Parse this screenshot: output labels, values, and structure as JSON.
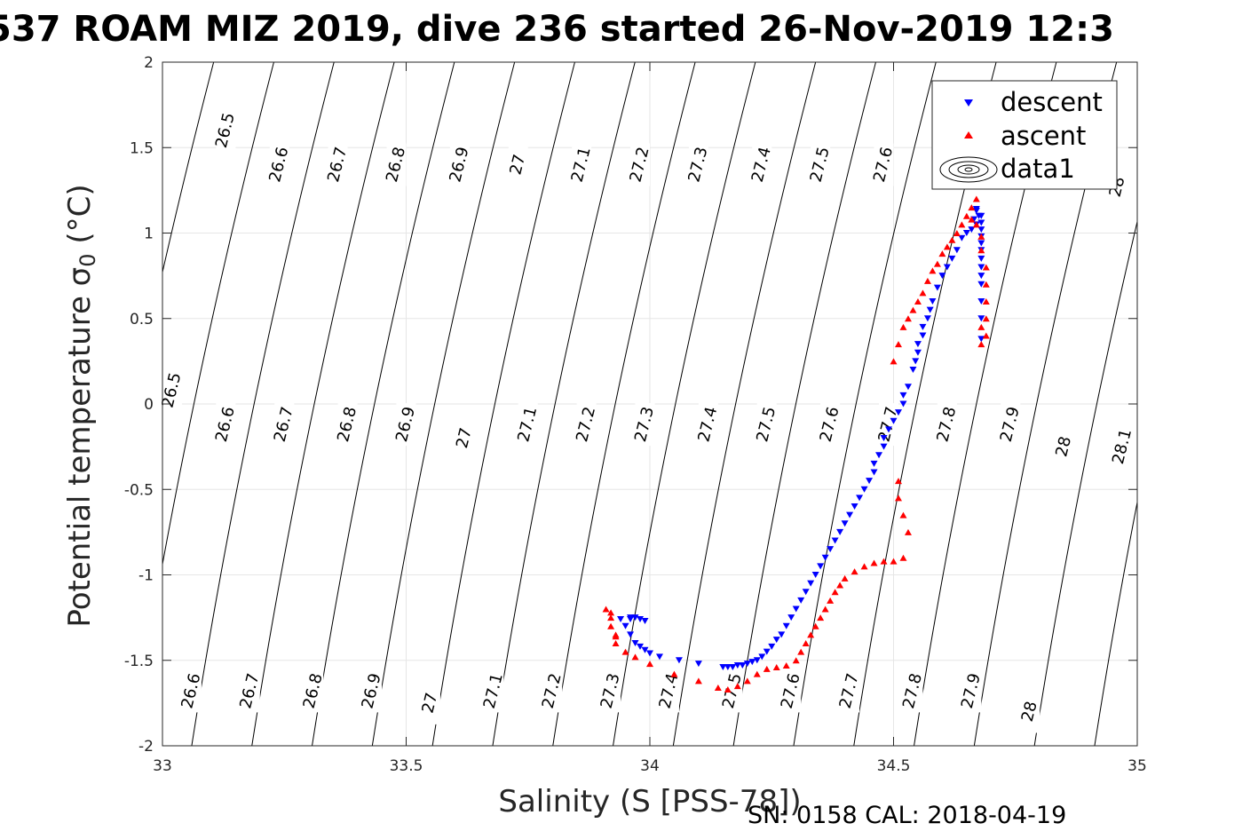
{
  "chart_data": {
    "type": "scatter",
    "title": "537 ROAM MIZ 2019, dive 236 started 26-Nov-2019 12:3",
    "xlabel": "Salinity (S [PSS-78])",
    "ylabel_main": "Potential temperature σ",
    "ylabel_sub": "0",
    "ylabel_unit": " (°C)",
    "footer": "SN: 0158  CAL: 2018-04-19",
    "xlim": [
      33,
      35
    ],
    "ylim": [
      -2,
      2
    ],
    "grid": true,
    "legend_position": "top-right",
    "x_ticks": [
      "33",
      "33.5",
      "34",
      "34.5",
      "35"
    ],
    "y_ticks": [
      "-2",
      "-1.5",
      "-1",
      "-0.5",
      "0",
      "0.5",
      "1",
      "1.5",
      "2"
    ],
    "legend": [
      "descent",
      "ascent",
      "data1"
    ],
    "colors": {
      "descent": "#0000ff",
      "ascent": "#ff0000",
      "contour": "#000000"
    },
    "contour_labels": [
      {
        "text": "26.5",
        "x": 33.13,
        "y": 1.6
      },
      {
        "text": "26.6",
        "x": 33.24,
        "y": 1.4
      },
      {
        "text": "26.7",
        "x": 33.36,
        "y": 1.4
      },
      {
        "text": "26.8",
        "x": 33.48,
        "y": 1.4
      },
      {
        "text": "26.9",
        "x": 33.61,
        "y": 1.4
      },
      {
        "text": "27",
        "x": 33.73,
        "y": 1.4
      },
      {
        "text": "27.1",
        "x": 33.86,
        "y": 1.4
      },
      {
        "text": "27.2",
        "x": 33.98,
        "y": 1.4
      },
      {
        "text": "27.3",
        "x": 34.1,
        "y": 1.4
      },
      {
        "text": "27.4",
        "x": 34.23,
        "y": 1.4
      },
      {
        "text": "27.5",
        "x": 34.35,
        "y": 1.4
      },
      {
        "text": "27.6",
        "x": 34.48,
        "y": 1.4
      },
      {
        "text": "28",
        "x": 34.96,
        "y": 1.27
      },
      {
        "text": "26.5",
        "x": 33.02,
        "y": 0.08
      },
      {
        "text": "26.6",
        "x": 33.13,
        "y": -0.12
      },
      {
        "text": "26.7",
        "x": 33.25,
        "y": -0.12
      },
      {
        "text": "26.8",
        "x": 33.38,
        "y": -0.12
      },
      {
        "text": "26.9",
        "x": 33.5,
        "y": -0.12
      },
      {
        "text": "27",
        "x": 33.62,
        "y": -0.2
      },
      {
        "text": "27.1",
        "x": 33.75,
        "y": -0.12
      },
      {
        "text": "27.2",
        "x": 33.87,
        "y": -0.12
      },
      {
        "text": "27.3",
        "x": 33.99,
        "y": -0.12
      },
      {
        "text": "27.4",
        "x": 34.12,
        "y": -0.12
      },
      {
        "text": "27.5",
        "x": 34.24,
        "y": -0.12
      },
      {
        "text": "27.6",
        "x": 34.37,
        "y": -0.12
      },
      {
        "text": "27.7",
        "x": 34.49,
        "y": -0.12
      },
      {
        "text": "27.8",
        "x": 34.61,
        "y": -0.12
      },
      {
        "text": "27.9",
        "x": 34.74,
        "y": -0.12
      },
      {
        "text": "28",
        "x": 34.85,
        "y": -0.25
      },
      {
        "text": "28.1",
        "x": 34.97,
        "y": -0.25
      },
      {
        "text": "26.6",
        "x": 33.06,
        "y": -1.68
      },
      {
        "text": "26.7",
        "x": 33.18,
        "y": -1.68
      },
      {
        "text": "26.8",
        "x": 33.31,
        "y": -1.68
      },
      {
        "text": "26.9",
        "x": 33.43,
        "y": -1.68
      },
      {
        "text": "27",
        "x": 33.55,
        "y": -1.75
      },
      {
        "text": "27.1",
        "x": 33.68,
        "y": -1.68
      },
      {
        "text": "27.2",
        "x": 33.8,
        "y": -1.68
      },
      {
        "text": "27.3",
        "x": 33.92,
        "y": -1.68
      },
      {
        "text": "27.4",
        "x": 34.04,
        "y": -1.68
      },
      {
        "text": "27.5",
        "x": 34.17,
        "y": -1.68
      },
      {
        "text": "27.6",
        "x": 34.29,
        "y": -1.68
      },
      {
        "text": "27.7",
        "x": 34.41,
        "y": -1.68
      },
      {
        "text": "27.8",
        "x": 34.54,
        "y": -1.68
      },
      {
        "text": "27.9",
        "x": 34.66,
        "y": -1.68
      },
      {
        "text": "28",
        "x": 34.78,
        "y": -1.8
      }
    ],
    "series": [
      {
        "name": "descent",
        "marker": "triangle-down",
        "x": [
          34.67,
          34.67,
          34.68,
          34.68,
          34.68,
          34.68,
          34.68,
          34.68,
          34.68,
          34.68,
          34.68,
          34.68,
          34.68,
          34.68,
          34.68,
          34.675,
          34.67,
          34.665,
          34.66,
          34.65,
          34.64,
          34.63,
          34.62,
          34.61,
          34.6,
          34.59,
          34.58,
          34.575,
          34.57,
          34.56,
          34.56,
          34.55,
          34.55,
          34.545,
          34.54,
          34.53,
          34.52,
          34.52,
          34.51,
          34.5,
          34.49,
          34.48,
          34.48,
          34.47,
          34.46,
          34.46,
          34.45,
          34.44,
          34.43,
          34.42,
          34.41,
          34.4,
          34.39,
          34.38,
          34.37,
          34.36,
          34.35,
          34.34,
          34.33,
          34.32,
          34.31,
          34.3,
          34.29,
          34.28,
          34.27,
          34.26,
          34.25,
          34.24,
          34.23,
          34.22,
          34.21,
          34.2,
          34.19,
          34.18,
          34.17,
          34.16,
          34.15,
          34.1,
          34.06,
          34.02,
          34.0,
          33.99,
          33.98,
          33.97,
          33.96,
          33.95,
          33.96,
          33.97,
          33.98,
          33.99,
          33.96,
          33.94
        ],
        "y": [
          1.14,
          1.13,
          1.1,
          1.06,
          1.02,
          0.98,
          0.94,
          0.9,
          0.85,
          0.8,
          0.75,
          0.7,
          0.6,
          0.5,
          0.38,
          1.1,
          1.05,
          1.08,
          1.02,
          1.0,
          0.97,
          0.9,
          0.85,
          0.8,
          0.75,
          0.68,
          0.6,
          0.55,
          0.5,
          0.45,
          0.4,
          0.35,
          0.3,
          0.25,
          0.2,
          0.1,
          0.05,
          0.0,
          -0.05,
          -0.1,
          -0.15,
          -0.2,
          -0.25,
          -0.3,
          -0.35,
          -0.4,
          -0.45,
          -0.5,
          -0.55,
          -0.6,
          -0.65,
          -0.7,
          -0.75,
          -0.8,
          -0.85,
          -0.9,
          -0.95,
          -1.0,
          -1.05,
          -1.1,
          -1.15,
          -1.2,
          -1.25,
          -1.3,
          -1.35,
          -1.38,
          -1.42,
          -1.45,
          -1.48,
          -1.5,
          -1.51,
          -1.52,
          -1.53,
          -1.53,
          -1.54,
          -1.54,
          -1.54,
          -1.52,
          -1.5,
          -1.48,
          -1.46,
          -1.44,
          -1.42,
          -1.4,
          -1.35,
          -1.3,
          -1.26,
          -1.25,
          -1.26,
          -1.27,
          -1.25,
          -1.26
        ]
      },
      {
        "name": "ascent",
        "marker": "triangle-up",
        "x": [
          33.91,
          33.92,
          33.92,
          33.92,
          33.93,
          33.93,
          33.93,
          33.95,
          33.97,
          34.0,
          34.05,
          34.1,
          34.14,
          34.16,
          34.18,
          34.2,
          34.22,
          34.24,
          34.26,
          34.28,
          34.3,
          34.31,
          34.32,
          34.33,
          34.34,
          34.35,
          34.36,
          34.37,
          34.38,
          34.39,
          34.4,
          34.42,
          34.44,
          34.46,
          34.48,
          34.5,
          34.52,
          34.51,
          34.51,
          34.52,
          34.53,
          34.5,
          34.51,
          34.52,
          34.53,
          34.54,
          34.55,
          34.56,
          34.57,
          34.58,
          34.59,
          34.6,
          34.61,
          34.62,
          34.63,
          34.64,
          34.65,
          34.66,
          34.67,
          34.66,
          34.67,
          34.68,
          34.68,
          34.69,
          34.69,
          34.69,
          34.69,
          34.69,
          34.68,
          34.68
        ],
        "y": [
          -1.2,
          -1.22,
          -1.25,
          -1.3,
          -1.35,
          -1.4,
          -1.36,
          -1.45,
          -1.48,
          -1.52,
          -1.58,
          -1.62,
          -1.66,
          -1.67,
          -1.65,
          -1.62,
          -1.58,
          -1.55,
          -1.54,
          -1.53,
          -1.5,
          -1.45,
          -1.4,
          -1.35,
          -1.3,
          -1.25,
          -1.2,
          -1.15,
          -1.1,
          -1.06,
          -1.02,
          -0.98,
          -0.95,
          -0.93,
          -0.92,
          -0.92,
          -0.9,
          -0.45,
          -0.55,
          -0.65,
          -0.75,
          0.25,
          0.35,
          0.45,
          0.5,
          0.55,
          0.6,
          0.65,
          0.72,
          0.78,
          0.82,
          0.88,
          0.92,
          0.96,
          1.0,
          1.05,
          1.1,
          1.15,
          1.2,
          1.08,
          1.05,
          0.98,
          0.9,
          0.8,
          0.7,
          0.6,
          0.5,
          0.4,
          0.35,
          0.45
        ]
      }
    ]
  }
}
